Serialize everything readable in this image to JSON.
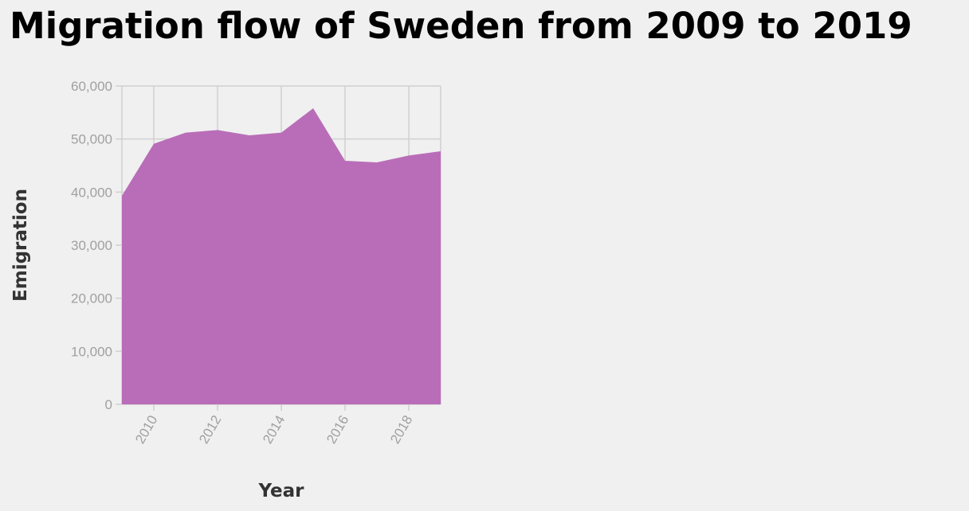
{
  "title": "Migration flow of Sweden from 2009 to 2019",
  "colors": {
    "background": "#f0f0f0",
    "area_fill": "#b96db8",
    "grid": "#d0d0d0",
    "tick_text": "#a0a0a0",
    "axis_title": "#333333"
  },
  "chart_data": {
    "type": "area",
    "title": "Migration flow of Sweden from 2009 to 2019",
    "xlabel": "Year",
    "ylabel": "Emigration",
    "x": [
      2009,
      2010,
      2011,
      2012,
      2013,
      2014,
      2015,
      2016,
      2017,
      2018,
      2019
    ],
    "series": [
      {
        "values": [
          39300,
          49100,
          51200,
          51700,
          50700,
          51200,
          55800,
          45900,
          45600,
          46900,
          47700
        ]
      }
    ],
    "xlim": [
      2009,
      2019
    ],
    "ylim": [
      0,
      60000
    ],
    "x_ticks": [
      2010,
      2012,
      2014,
      2016,
      2018
    ],
    "x_tick_labels": [
      "2010",
      "2012",
      "2014",
      "2016",
      "2018"
    ],
    "y_ticks": [
      0,
      10000,
      20000,
      30000,
      40000,
      50000,
      60000
    ],
    "y_tick_labels": [
      "0",
      "10,000",
      "20,000",
      "30,000",
      "40,000",
      "50,000",
      "60,000"
    ],
    "grid": true,
    "legend": "none"
  }
}
